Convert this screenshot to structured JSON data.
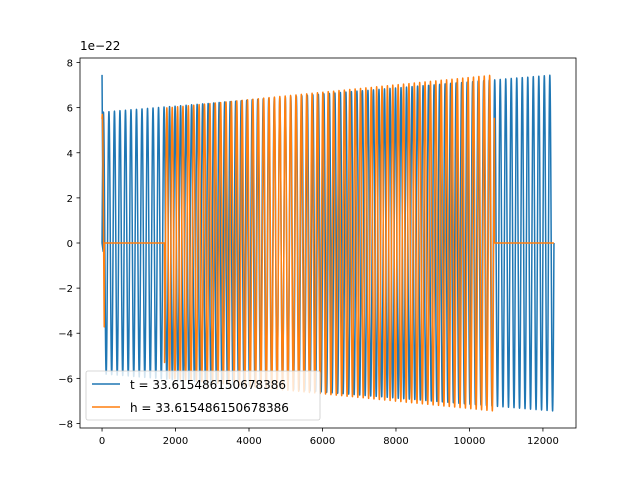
{
  "chart_data": {
    "type": "line",
    "title": "",
    "xlabel": "",
    "ylabel": "",
    "offset_text": "1e−22",
    "y_scale_factor": 1e-22,
    "xlim": [
      -600,
      12900
    ],
    "ylim": [
      -8.2,
      8.2
    ],
    "xticks": [
      0,
      2000,
      4000,
      6000,
      8000,
      10000,
      12000
    ],
    "xtick_labels": [
      "0",
      "2000",
      "4000",
      "6000",
      "8000",
      "10000",
      "12000"
    ],
    "yticks": [
      -8,
      -6,
      -4,
      -2,
      0,
      2,
      4,
      6,
      8
    ],
    "ytick_labels": [
      "−8",
      "−6",
      "−4",
      "−2",
      "0",
      "2",
      "4",
      "6",
      "8"
    ],
    "grid": false,
    "legend_location": "lower left",
    "series": [
      {
        "name": "t = 33.615486150678386",
        "color": "#1f77b4",
        "x_start": 0,
        "x_end": 12300,
        "cycles": 82,
        "amplitude_start": 5.8,
        "amplitude_end": 7.45,
        "initial_spike": 7.45,
        "flat_zero_ranges": []
      },
      {
        "name": "h = 33.615486150678386",
        "color": "#ff7f0e",
        "x_start": 0,
        "x_end": 12300,
        "cycles": 84,
        "amplitude_start": 5.7,
        "amplitude_end": 7.45,
        "signal_end": 10680,
        "flat_zero_ranges": [
          [
            60,
            1700
          ],
          [
            10680,
            12300
          ]
        ]
      }
    ]
  }
}
